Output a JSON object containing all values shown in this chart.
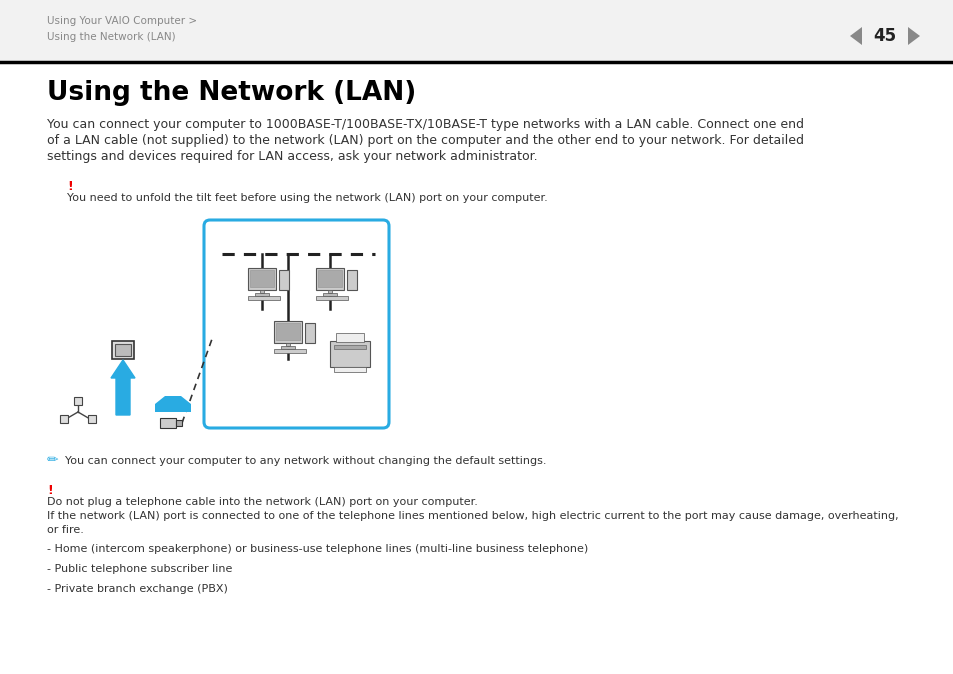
{
  "bg_color": "#ffffff",
  "header_bg": "#f2f2f2",
  "header_text1": "Using Your VAIO Computer >",
  "header_text2": "Using the Network (LAN)",
  "header_page": "45",
  "title": "Using the Network (LAN)",
  "body_line1": "You can connect your computer to 1000BASE-T/100BASE-TX/10BASE-T type networks with a LAN cable. Connect one end",
  "body_line2": "of a LAN cable (not supplied) to the network (LAN) port on the computer and the other end to your network. For detailed",
  "body_line3": "settings and devices required for LAN access, ask your network administrator.",
  "warning1_mark": "!",
  "warning1_text": "You need to unfold the tilt feet before using the network (LAN) port on your computer.",
  "note1_text": "You can connect your computer to any network without changing the default settings.",
  "warning2_mark": "!",
  "warning2_text1": "Do not plug a telephone cable into the network (LAN) port on your computer.",
  "warning2_text2": "If the network (LAN) port is connected to one of the telephone lines mentioned below, high electric current to the port may cause damage, overheating,",
  "warning2_text3": "or fire.",
  "bullet1": "- Home (intercom speakerphone) or business-use telephone lines (multi-line business telephone)",
  "bullet2": "- Public telephone subscriber line",
  "bullet3": "- Private branch exchange (PBX)",
  "header_color": "#888888",
  "title_color": "#000000",
  "body_color": "#333333",
  "warning_color": "#ee0000",
  "divider_color": "#000000",
  "box_color": "#29abe2",
  "arrow_color": "#29abe2",
  "network_icon_color": "#555555"
}
